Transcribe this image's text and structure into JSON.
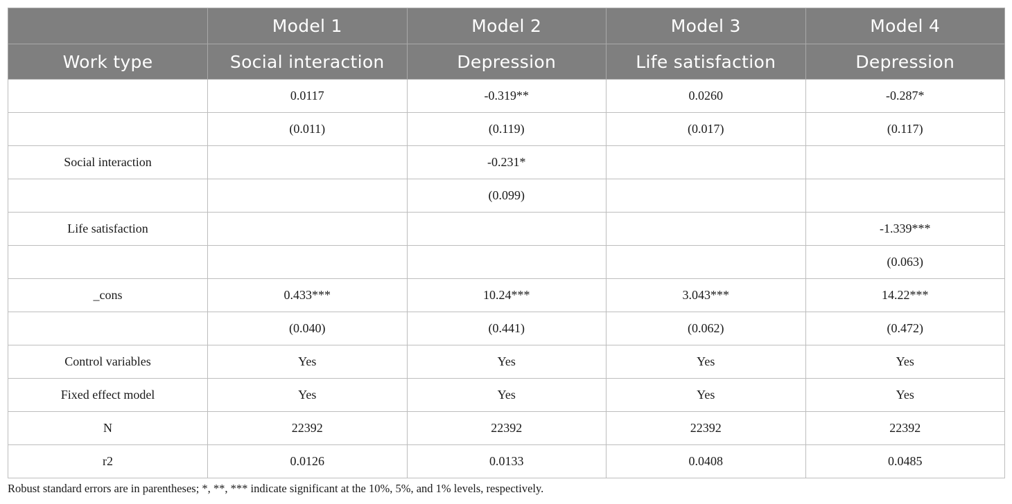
{
  "header": {
    "models": [
      "Model 1",
      "Model 2",
      "Model 3",
      "Model 4"
    ],
    "row_label": "Work type",
    "dependent_vars": [
      "Social interaction",
      "Depression",
      "Life satisfaction",
      "Depression"
    ]
  },
  "rows": [
    {
      "label": "",
      "cells": [
        "0.0117",
        "-0.319**",
        "0.0260",
        "-0.287*"
      ]
    },
    {
      "label": "",
      "cells": [
        "(0.011)",
        "(0.119)",
        "(0.017)",
        "(0.117)"
      ]
    },
    {
      "label": "Social interaction",
      "cells": [
        "",
        "-0.231*",
        "",
        ""
      ]
    },
    {
      "label": "",
      "cells": [
        "",
        "(0.099)",
        "",
        ""
      ]
    },
    {
      "label": "Life satisfaction",
      "cells": [
        "",
        "",
        "",
        "-1.339***"
      ]
    },
    {
      "label": "",
      "cells": [
        "",
        "",
        "",
        "(0.063)"
      ]
    },
    {
      "label": "_cons",
      "cells": [
        "0.433***",
        "10.24***",
        "3.043***",
        "14.22***"
      ]
    },
    {
      "label": "",
      "cells": [
        "(0.040)",
        "(0.441)",
        "(0.062)",
        "(0.472)"
      ]
    },
    {
      "label": "Control variables",
      "cells": [
        "Yes",
        "Yes",
        "Yes",
        "Yes"
      ]
    },
    {
      "label": "Fixed effect model",
      "cells": [
        "Yes",
        "Yes",
        "Yes",
        "Yes"
      ]
    },
    {
      "label": "N",
      "cells": [
        "22392",
        "22392",
        "22392",
        "22392"
      ]
    },
    {
      "label": "r2",
      "cells": [
        "0.0126",
        "0.0133",
        "0.0408",
        "0.0485"
      ]
    }
  ],
  "note": "Robust standard errors are in parentheses; *, **, *** indicate significant at the 10%, 5%, and 1% levels, respectively.",
  "colors": {
    "header_bg": "#7f7f7f",
    "header_text": "#ffffff",
    "border": "#bdbdbd"
  }
}
